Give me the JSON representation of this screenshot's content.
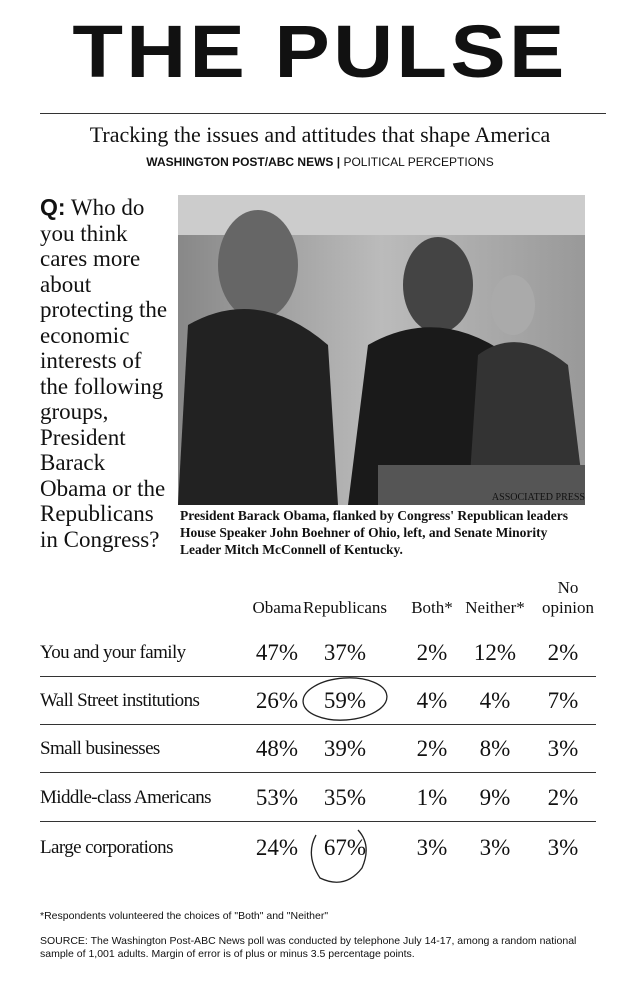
{
  "header": {
    "title": "THE PULSE",
    "subtitle": "Tracking the issues and attitudes that shape America",
    "source_bold": "WASHINGTON POST/ABC NEWS",
    "source_sep": "|",
    "source_rest": "POLITICAL PERCEPTIONS"
  },
  "question": {
    "label": "Q:",
    "text": "Who do you think cares more about protecting the economic interests of the following groups, President Barack Obama or the Republicans in Congress?"
  },
  "photo": {
    "credit": "ASSOCIATED PRESS",
    "caption": "President Barack Obama, flanked by Congress' Republican leaders House Speaker John Boehner of Ohio, left, and Senate Minority Leader Mitch McConnell of Kentucky."
  },
  "table": {
    "columns": [
      "Obama",
      "Republicans",
      "Both*",
      "Neither*",
      "No opinion"
    ],
    "rows": [
      [
        "You and your family",
        "47%",
        "37%",
        "2%",
        "12%",
        "2%"
      ],
      [
        "Wall Street institutions",
        "26%",
        "59%",
        "4%",
        "4%",
        "7%"
      ],
      [
        "Small businesses",
        "48%",
        "39%",
        "2%",
        "8%",
        "3%"
      ],
      [
        "Middle-class Americans",
        "53%",
        "35%",
        "1%",
        "9%",
        "2%"
      ],
      [
        "Large corporations",
        "24%",
        "67%",
        "3%",
        "3%",
        "3%"
      ]
    ]
  },
  "footnote": "*Respondents volunteered the choices of \"Both\" and \"Neither\"",
  "source": "SOURCE: The Washington Post-ABC News poll was conducted by telephone July 14-17, among a random national sample of 1,001 adults. Margin of error is of plus or minus 3.5 percentage points."
}
